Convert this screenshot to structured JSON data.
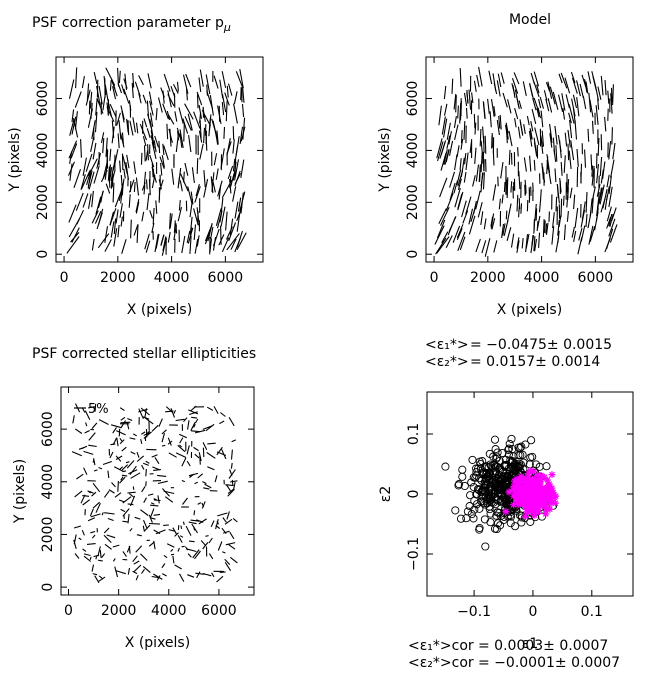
{
  "panels": {
    "tl": {
      "title": "PSF correction parameter p",
      "title_sub": "μ"
    },
    "tr": {
      "title": "Model"
    },
    "bl": {
      "title": "PSF corrected stellar ellipticities",
      "scale_label": "5%"
    }
  },
  "stats": {
    "e1_label": "<ε₁*>",
    "e1_value": "= −0.0475± 0.0015",
    "e2_label": "<ε₂*>",
    "e2_value": "= 0.0157± 0.0014",
    "e1_cor_label": "<ε₁*>cor",
    "e1_cor_value": "= 0.0003± 0.0007",
    "e2_cor_label": "<ε₂*>cor",
    "e2_cor_value": "= −0.0001± 0.0007"
  },
  "chart_data": [
    {
      "type": "vector-field",
      "title": "PSF correction parameter p_μ",
      "xlabel": "X (pixels)",
      "ylabel": "Y (pixels)",
      "xlim": [
        -300,
        7400
      ],
      "ylim": [
        -300,
        7600
      ],
      "xticks": [
        0,
        2000,
        4000,
        6000
      ],
      "yticks": [
        0,
        2000,
        4000,
        6000
      ],
      "description_values": {
        "typical_orientation_deg": [
          60,
          100
        ]
      }
    },
    {
      "type": "vector-field",
      "title": "Model",
      "xlabel": "X (pixels)",
      "ylabel": "Y (pixels)",
      "xlim": [
        -300,
        7400
      ],
      "ylim": [
        -300,
        7600
      ],
      "xticks": [
        0,
        2000,
        4000,
        6000
      ],
      "yticks": [
        0,
        2000,
        4000,
        6000
      ]
    },
    {
      "type": "vector-field",
      "title": "PSF corrected stellar ellipticities",
      "xlabel": "X (pixels)",
      "ylabel": "Y (pixels)",
      "xlim": [
        -300,
        7400
      ],
      "ylim": [
        -300,
        7600
      ],
      "xticks": [
        0,
        2000,
        4000,
        6000
      ],
      "yticks": [
        0,
        2000,
        4000,
        6000
      ],
      "scale_bar": "5%"
    },
    {
      "type": "scatter",
      "xlabel": "ε1",
      "ylabel": "ε2",
      "xlim": [
        -0.18,
        0.17
      ],
      "ylim": [
        -0.17,
        0.17
      ],
      "xticks": [
        -0.1,
        0,
        0.1
      ],
      "yticks": [
        -0.1,
        0,
        0.1
      ],
      "series": [
        {
          "marker": "circle",
          "color": "#000000",
          "center": [
            -0.0475,
            0.0157
          ],
          "spread": [
            0.032,
            0.03
          ]
        },
        {
          "marker": "asterisk",
          "color": "#ff00ff",
          "center": [
            0.0003,
            -0.0001
          ],
          "spread": [
            0.015,
            0.013
          ]
        }
      ]
    }
  ]
}
